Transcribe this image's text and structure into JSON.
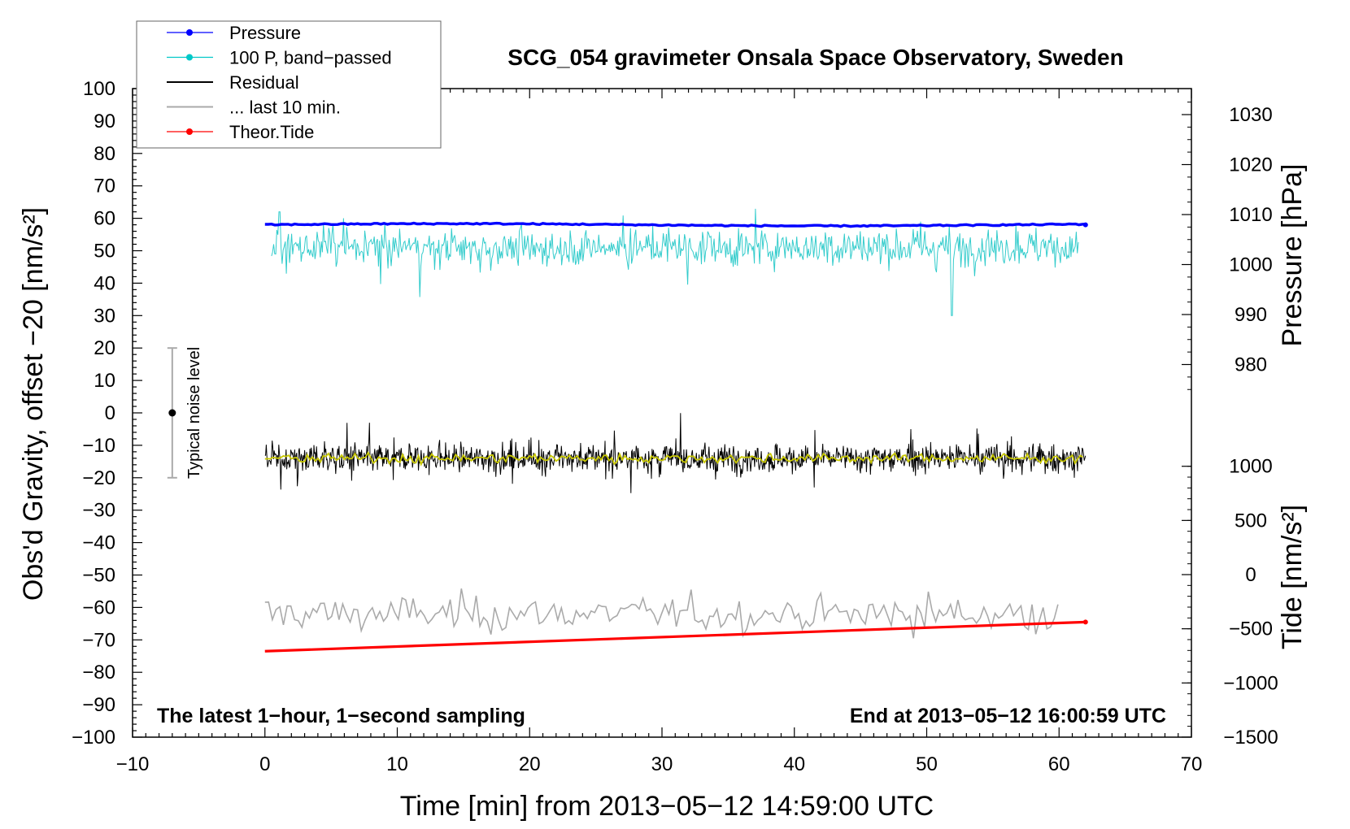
{
  "chart_data": {
    "type": "line",
    "title": "SCG_054 gravimeter Onsala Space Observatory, Sweden",
    "xlabel": "Time [min] from 2013−05−12 14:59:00 UTC",
    "ylabel_left": "Obs'd Gravity, offset −20 [nm/s²]",
    "ylabel_right_top": "Pressure [hPa]",
    "ylabel_right_bottom": "Tide [nm/s²]",
    "xlim": [
      -10,
      70
    ],
    "ylim_left": [
      -100,
      100
    ],
    "pressure_axis_range": [
      970,
      1035
    ],
    "tide_axis_range": [
      -1500,
      1500
    ],
    "x_ticks": [
      "−10",
      "0",
      "10",
      "20",
      "30",
      "40",
      "50",
      "60",
      "70"
    ],
    "y_left_ticks": [
      "100",
      "90",
      "80",
      "70",
      "60",
      "50",
      "40",
      "30",
      "20",
      "10",
      "0",
      "−10",
      "−20",
      "−30",
      "−40",
      "−50",
      "−60",
      "−70",
      "−80",
      "−90",
      "−100"
    ],
    "y_right_pressure_ticks": [
      "1030",
      "1020",
      "1010",
      "1000",
      "990",
      "980"
    ],
    "y_right_tide_ticks": [
      "1000",
      "500",
      "0",
      "−500",
      "−1000",
      "−1500"
    ],
    "annotations": {
      "bottom_left": "The latest 1−hour, 1−second sampling",
      "bottom_right": "End at 2013−05−12 16:00:59 UTC",
      "noise_label": "Typical noise level"
    },
    "noise_bar": {
      "x": -7,
      "center": 0,
      "low": -20,
      "high": 20
    },
    "legend": {
      "position": "top-left",
      "entries": [
        {
          "label": "Pressure",
          "color": "#0000ff",
          "marker": true
        },
        {
          "label": "100 P, band−passed",
          "color": "#00c8c8",
          "marker": true
        },
        {
          "label": "Residual",
          "color": "#000000",
          "marker": false
        },
        {
          "label": "... last 10 min.",
          "color": "#aaaaaa",
          "marker": false
        },
        {
          "label": "Theor.Tide",
          "color": "#ff0000",
          "marker": true
        }
      ]
    },
    "series": [
      {
        "name": "Pressure",
        "color": "#0000ff",
        "x_range": [
          0,
          62
        ],
        "approx_pressure_hPa": 1008.5,
        "plotted_level_left_units": 58
      },
      {
        "name": "100 P, band−passed",
        "color": "#33cccc",
        "x_range": [
          0.5,
          61.5
        ],
        "mean_left_units": 51,
        "typical_spread": 5,
        "extremes": [
          {
            "x": 51.9,
            "y": 30
          },
          {
            "x": 1.1,
            "y": 62
          }
        ]
      },
      {
        "name": "Residual",
        "color": "#000000",
        "x_range": [
          0,
          62
        ],
        "mean_left_units": -14,
        "typical_spread": 4,
        "extremes": [
          {
            "x": 48.8,
            "y": -5
          },
          {
            "x": 41.5,
            "y": -23
          }
        ]
      },
      {
        "name": "Residual (smoothed)",
        "color": "#c8c800",
        "x_range": [
          0,
          62
        ],
        "mean_left_units": -14
      },
      {
        "name": "... last 10 min.",
        "color": "#aaaaaa",
        "x_range": [
          0,
          60
        ],
        "mean_left_units": -62,
        "typical_spread": 3
      },
      {
        "name": "Theor.Tide",
        "color": "#ff0000",
        "x": [
          0,
          62
        ],
        "y_left_units": [
          -73.5,
          -64.5
        ]
      }
    ]
  }
}
